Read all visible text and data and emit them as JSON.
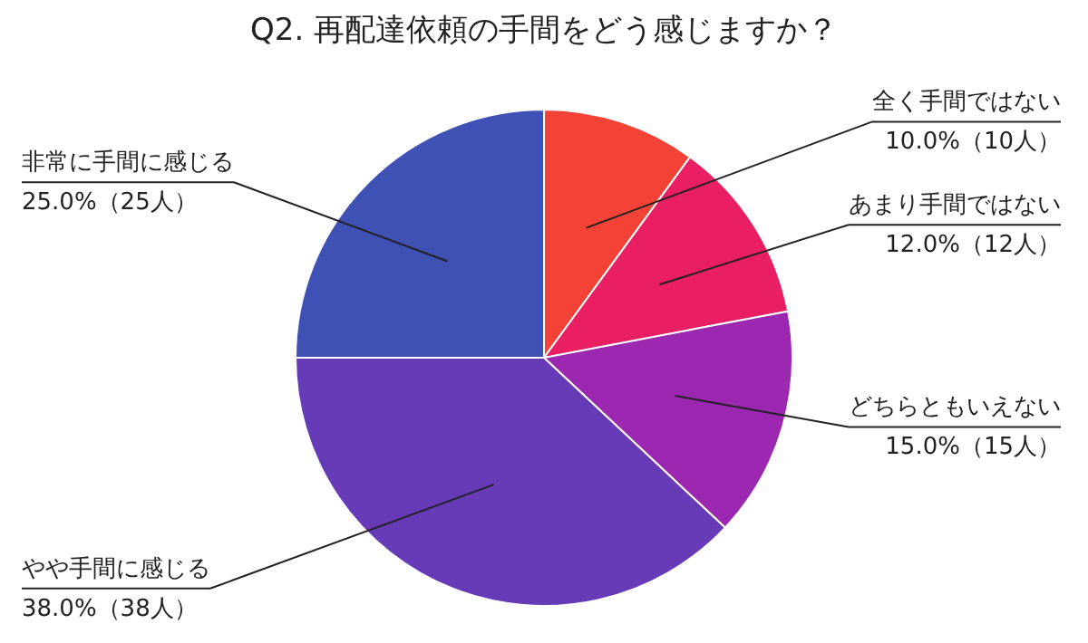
{
  "chart_data": {
    "type": "pie",
    "title": "Q2. 再配達依頼の手間をどう感じますか？",
    "categories": [
      "全く手間ではない",
      "あまり手間ではない",
      "どちらともいえない",
      "やや手間に感じる",
      "非常に手間に感じる"
    ],
    "values": [
      10,
      12,
      15,
      38,
      25
    ],
    "value_labels": [
      "10.0%（10人）",
      "12.0%（12人）",
      "15.0%（15人）",
      "38.0%（38人）",
      "25.0%（25人）"
    ],
    "colors": [
      "#f44336",
      "#e91e63",
      "#9c27b0",
      "#673ab7",
      "#3f51b5"
    ]
  }
}
